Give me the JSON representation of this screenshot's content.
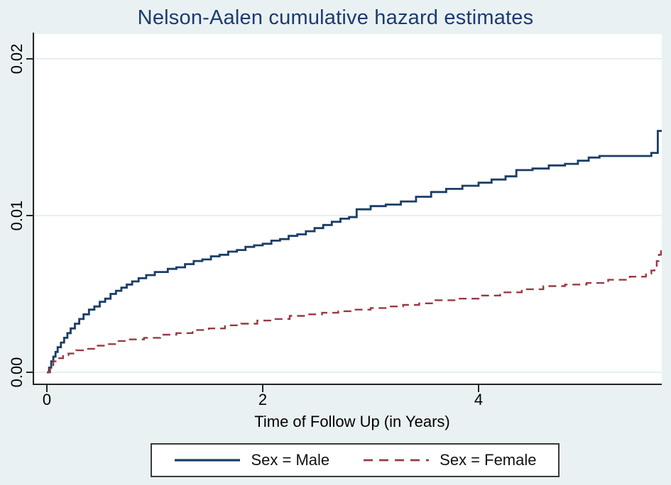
{
  "figure": {
    "background": "#eaf1f3",
    "plot_background": "#ffffff",
    "axis_color": "#242424",
    "grid_color": "#e2edf2",
    "title_color": "#1a3c70"
  },
  "chart_data": {
    "type": "line",
    "step": true,
    "title": "Nelson-Aalen cumulative hazard estimates",
    "xlabel": "Time of Follow Up (in Years)",
    "ylabel": "",
    "grid": true,
    "legend_position": "bottom-center",
    "x_range": [
      -0.112,
      5.697
    ],
    "y_range": [
      -0.00072,
      0.02158
    ],
    "x_ticks": [
      {
        "value": 0,
        "label": "0"
      },
      {
        "value": 2,
        "label": "2"
      },
      {
        "value": 4,
        "label": "4"
      }
    ],
    "y_ticks": [
      {
        "value": 0.0,
        "label": "0.00"
      },
      {
        "value": 0.01,
        "label": "0.01"
      },
      {
        "value": 0.02,
        "label": "0.02"
      }
    ],
    "series": [
      {
        "key": "male",
        "name": "Sex = Male",
        "color": "#1a3d66",
        "style": "solid",
        "width": 2.8,
        "points": [
          [
            0,
            0
          ],
          [
            0.02,
            0.0003
          ],
          [
            0.04,
            0.0007
          ],
          [
            0.06,
            0.001
          ],
          [
            0.08,
            0.0013
          ],
          [
            0.1,
            0.0016
          ],
          [
            0.13,
            0.0019
          ],
          [
            0.16,
            0.0022
          ],
          [
            0.19,
            0.0025
          ],
          [
            0.22,
            0.0028
          ],
          [
            0.26,
            0.0031
          ],
          [
            0.3,
            0.0034
          ],
          [
            0.34,
            0.0037
          ],
          [
            0.39,
            0.004
          ],
          [
            0.44,
            0.0042
          ],
          [
            0.49,
            0.0045
          ],
          [
            0.54,
            0.0047
          ],
          [
            0.59,
            0.005
          ],
          [
            0.64,
            0.0052
          ],
          [
            0.69,
            0.0054
          ],
          [
            0.74,
            0.0056
          ],
          [
            0.79,
            0.0058
          ],
          [
            0.85,
            0.006
          ],
          [
            0.92,
            0.0062
          ],
          [
            1.0,
            0.0064
          ],
          [
            1.12,
            0.0066
          ],
          [
            1.2,
            0.0067
          ],
          [
            1.28,
            0.0069
          ],
          [
            1.36,
            0.0071
          ],
          [
            1.44,
            0.0072
          ],
          [
            1.52,
            0.0074
          ],
          [
            1.6,
            0.0075
          ],
          [
            1.68,
            0.0077
          ],
          [
            1.76,
            0.0078
          ],
          [
            1.84,
            0.008
          ],
          [
            1.92,
            0.0081
          ],
          [
            2.0,
            0.0082
          ],
          [
            2.08,
            0.0084
          ],
          [
            2.16,
            0.0085
          ],
          [
            2.24,
            0.0087
          ],
          [
            2.32,
            0.0088
          ],
          [
            2.4,
            0.009
          ],
          [
            2.48,
            0.0092
          ],
          [
            2.56,
            0.0094
          ],
          [
            2.64,
            0.0096
          ],
          [
            2.72,
            0.0098
          ],
          [
            2.8,
            0.0099
          ],
          [
            2.87,
            0.0104
          ],
          [
            3.0,
            0.0106
          ],
          [
            3.14,
            0.0107
          ],
          [
            3.28,
            0.0109
          ],
          [
            3.42,
            0.0112
          ],
          [
            3.56,
            0.0115
          ],
          [
            3.7,
            0.0117
          ],
          [
            3.85,
            0.0119
          ],
          [
            4.0,
            0.0121
          ],
          [
            4.12,
            0.0123
          ],
          [
            4.25,
            0.0125
          ],
          [
            4.35,
            0.0129
          ],
          [
            4.5,
            0.013
          ],
          [
            4.65,
            0.0132
          ],
          [
            4.8,
            0.0133
          ],
          [
            4.92,
            0.0135
          ],
          [
            5.02,
            0.0137
          ],
          [
            5.12,
            0.0138
          ],
          [
            5.6,
            0.014
          ],
          [
            5.66,
            0.0154
          ],
          [
            5.697,
            0.0154
          ]
        ]
      },
      {
        "key": "female",
        "name": "Sex = Female",
        "color": "#963b43",
        "style": "dashed",
        "dash": "11 7",
        "width": 2.4,
        "points": [
          [
            0,
            0
          ],
          [
            0.03,
            0.0004
          ],
          [
            0.06,
            0.0007
          ],
          [
            0.1,
            0.0009
          ],
          [
            0.15,
            0.0011
          ],
          [
            0.2,
            0.0012
          ],
          [
            0.27,
            0.0014
          ],
          [
            0.35,
            0.0015
          ],
          [
            0.45,
            0.0017
          ],
          [
            0.55,
            0.0018
          ],
          [
            0.65,
            0.002
          ],
          [
            0.75,
            0.0021
          ],
          [
            0.9,
            0.0022
          ],
          [
            1.05,
            0.0024
          ],
          [
            1.2,
            0.0025
          ],
          [
            1.35,
            0.0027
          ],
          [
            1.5,
            0.0028
          ],
          [
            1.65,
            0.003
          ],
          [
            1.8,
            0.0031
          ],
          [
            1.95,
            0.0033
          ],
          [
            2.1,
            0.0034
          ],
          [
            2.25,
            0.0036
          ],
          [
            2.4,
            0.0037
          ],
          [
            2.55,
            0.0038
          ],
          [
            2.7,
            0.0039
          ],
          [
            2.85,
            0.004
          ],
          [
            3.0,
            0.0041
          ],
          [
            3.15,
            0.0042
          ],
          [
            3.3,
            0.0043
          ],
          [
            3.45,
            0.0044
          ],
          [
            3.6,
            0.0046
          ],
          [
            3.8,
            0.0047
          ],
          [
            4.0,
            0.0049
          ],
          [
            4.2,
            0.0051
          ],
          [
            4.4,
            0.0053
          ],
          [
            4.6,
            0.0055
          ],
          [
            4.8,
            0.0056
          ],
          [
            5.0,
            0.0057
          ],
          [
            5.2,
            0.0059
          ],
          [
            5.4,
            0.0061
          ],
          [
            5.55,
            0.0063
          ],
          [
            5.6,
            0.0065
          ],
          [
            5.63,
            0.0068
          ],
          [
            5.65,
            0.0071
          ],
          [
            5.67,
            0.0075
          ],
          [
            5.69,
            0.008
          ]
        ]
      }
    ]
  }
}
